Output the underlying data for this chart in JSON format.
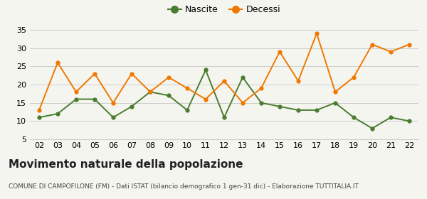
{
  "years": [
    "02",
    "03",
    "04",
    "05",
    "06",
    "07",
    "08",
    "09",
    "10",
    "11",
    "12",
    "13",
    "14",
    "15",
    "16",
    "17",
    "18",
    "19",
    "20",
    "21",
    "22"
  ],
  "nascite": [
    11,
    12,
    16,
    16,
    11,
    14,
    18,
    17,
    13,
    24,
    11,
    22,
    15,
    14,
    13,
    13,
    15,
    11,
    8,
    11,
    10
  ],
  "decessi": [
    13,
    26,
    18,
    23,
    15,
    23,
    18,
    22,
    19,
    16,
    21,
    15,
    19,
    29,
    21,
    34,
    18,
    22,
    31,
    29,
    31
  ],
  "nascite_color": "#4a7c2f",
  "decessi_color": "#f07800",
  "bg_color": "#f5f5f0",
  "grid_color": "#cccccc",
  "ylim_min": 5,
  "ylim_max": 35,
  "yticks": [
    5,
    10,
    15,
    20,
    25,
    30,
    35
  ],
  "title": "Movimento naturale della popolazione",
  "subtitle": "COMUNE DI CAMPOFILONE (FM) - Dati ISTAT (bilancio demografico 1 gen-31 dic) - Elaborazione TUTTITALIA.IT",
  "legend_nascite": "Nascite",
  "legend_decessi": "Decessi",
  "title_fontsize": 11,
  "subtitle_fontsize": 6.5,
  "tick_fontsize": 8
}
